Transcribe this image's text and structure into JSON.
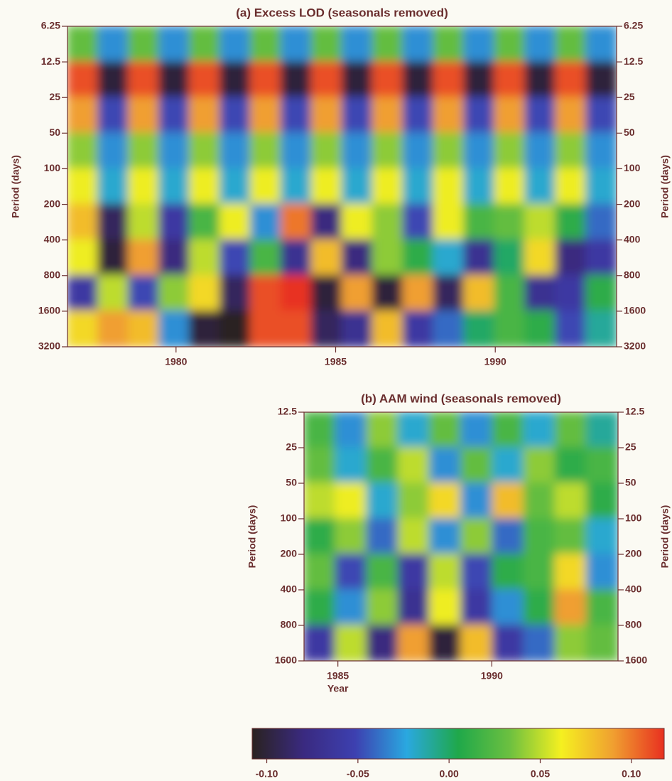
{
  "chart_data": [
    {
      "type": "heatmap",
      "title": "(a)  Excess LOD (seasonals removed)",
      "ylabel": "Period (days)",
      "xlim": [
        1976.6,
        1993.8
      ],
      "xticks": [
        1980,
        1985,
        1990
      ],
      "ylim": [
        6.25,
        3200
      ],
      "yscale": "log",
      "yinvert": true,
      "yticks": [
        6.25,
        12.5,
        25,
        50,
        100,
        200,
        400,
        800,
        1600,
        3200
      ],
      "z": [
        [
          0.03,
          -0.03,
          0.03,
          -0.03,
          0.03,
          -0.03,
          0.03,
          -0.03,
          0.03,
          -0.03,
          0.03,
          -0.03,
          0.03,
          -0.03,
          0.03,
          -0.03,
          0.03,
          -0.03
        ],
        [
          0.11,
          -0.1,
          0.11,
          -0.1,
          0.11,
          -0.1,
          0.11,
          -0.1,
          0.11,
          -0.1,
          0.11,
          -0.1,
          0.11,
          -0.1,
          0.11,
          -0.1,
          0.11,
          -0.1
        ],
        [
          0.09,
          -0.05,
          0.09,
          -0.05,
          0.09,
          -0.05,
          0.09,
          -0.05,
          0.09,
          -0.05,
          0.09,
          -0.05,
          0.09,
          -0.05,
          0.09,
          -0.05,
          0.09,
          -0.05
        ],
        [
          0.04,
          -0.03,
          0.04,
          -0.03,
          0.04,
          -0.03,
          0.04,
          -0.03,
          0.04,
          -0.03,
          0.04,
          -0.03,
          0.04,
          -0.03,
          0.04,
          -0.03,
          0.04,
          -0.03
        ],
        [
          0.06,
          -0.02,
          0.06,
          -0.02,
          0.06,
          -0.02,
          0.06,
          -0.02,
          0.06,
          -0.02,
          0.06,
          -0.02,
          0.06,
          -0.02,
          0.06,
          -0.02,
          0.06,
          -0.02
        ],
        [
          0.08,
          -0.09,
          0.05,
          -0.06,
          0.02,
          0.06,
          -0.03,
          0.1,
          -0.08,
          0.06,
          0.04,
          -0.05,
          0.06,
          0.02,
          0.03,
          0.05,
          0.01,
          -0.04
        ],
        [
          0.06,
          -0.1,
          0.09,
          -0.08,
          0.05,
          -0.05,
          0.02,
          -0.07,
          0.08,
          -0.08,
          0.04,
          0.01,
          -0.02,
          -0.07,
          0.0,
          0.07,
          -0.08,
          -0.06
        ],
        [
          -0.06,
          0.05,
          -0.05,
          0.04,
          0.07,
          -0.09,
          0.11,
          0.12,
          -0.1,
          0.09,
          -0.1,
          0.09,
          -0.09,
          0.08,
          0.02,
          -0.07,
          -0.06,
          0.01
        ],
        [
          0.07,
          0.09,
          0.08,
          -0.03,
          -0.1,
          -0.11,
          0.11,
          0.11,
          -0.09,
          -0.07,
          0.08,
          -0.06,
          -0.04,
          0.0,
          0.02,
          0.01,
          -0.05,
          -0.01
        ]
      ]
    },
    {
      "type": "heatmap",
      "title": "(b) AAM wind (seasonals removed)",
      "ylabel": "Period (days)",
      "xlabel": "Year",
      "xlim": [
        1983.9,
        1994.1
      ],
      "xticks": [
        1985,
        1990
      ],
      "ylim": [
        12.5,
        1600
      ],
      "yscale": "log",
      "yinvert": true,
      "yticks": [
        12.5,
        25,
        50,
        100,
        200,
        400,
        800,
        1600
      ],
      "z": [
        [
          0.02,
          -0.03,
          0.04,
          -0.02,
          0.03,
          -0.03,
          0.02,
          -0.02,
          0.03,
          -0.01
        ],
        [
          0.03,
          -0.02,
          0.02,
          0.05,
          -0.03,
          0.03,
          -0.02,
          0.04,
          0.01,
          0.02
        ],
        [
          0.05,
          0.06,
          -0.02,
          0.04,
          0.07,
          -0.03,
          0.08,
          0.03,
          0.05,
          0.01
        ],
        [
          0.01,
          0.04,
          -0.04,
          0.05,
          -0.03,
          0.04,
          -0.04,
          0.02,
          0.03,
          -0.02
        ],
        [
          0.03,
          -0.05,
          0.02,
          -0.06,
          0.05,
          -0.05,
          0.01,
          0.02,
          0.07,
          -0.03
        ],
        [
          0.01,
          -0.03,
          0.04,
          -0.07,
          0.06,
          -0.06,
          -0.03,
          0.01,
          0.09,
          0.02
        ],
        [
          -0.06,
          0.05,
          -0.08,
          0.09,
          -0.1,
          0.08,
          -0.06,
          -0.04,
          0.04,
          0.03
        ]
      ]
    },
    {
      "type": "colorbar",
      "xlim": [
        -0.108,
        0.118
      ],
      "xticks": [
        {
          "value": -0.1,
          "label": "-0.10"
        },
        -0.05,
        {
          "value": 0,
          "label": "0.00"
        },
        0.05,
        {
          "value": 0.1,
          "label": "0.10"
        }
      ],
      "colorscale": [
        "#2a2220",
        "#3a2a80",
        "#3d40b0",
        "#2aa8e0",
        "#1fa84a",
        "#6cc040",
        "#f5f020",
        "#f0a030",
        "#e83020"
      ]
    }
  ]
}
